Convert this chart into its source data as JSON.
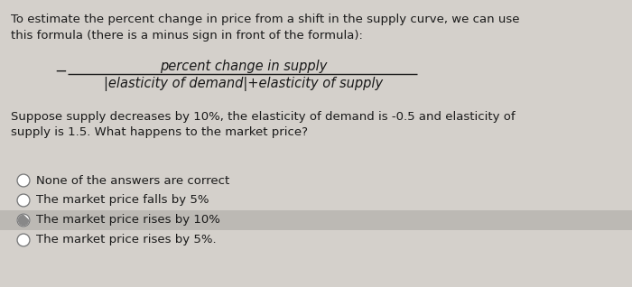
{
  "bg_color": "#d4d0cb",
  "text_color": "#1a1a1a",
  "highlight_color": "#bcb9b4",
  "intro_text_l1": "To estimate the percent change in price from a shift in the supply curve, we can use",
  "intro_text_l2": "this formula (there is a minus sign in front of the formula):",
  "numerator": "percent change in supply",
  "denominator": "|elasticity of demand|+elasticity of supply",
  "scenario_text_l1": "Suppose supply decreases by 10%, the elasticity of demand is -0.5 and elasticity of",
  "scenario_text_l2": "supply is 1.5. What happens to the market price?",
  "options": [
    {
      "text": "None of the answers are correct",
      "selected": false,
      "highlighted": false
    },
    {
      "text": "The market price falls by 5%",
      "selected": false,
      "highlighted": false
    },
    {
      "text": "The market price rises by 10%",
      "selected": true,
      "highlighted": true
    },
    {
      "text": "The market price rises by 5%.",
      "selected": false,
      "highlighted": false
    }
  ],
  "font_size_body": 9.5,
  "font_size_formula": 10.5
}
